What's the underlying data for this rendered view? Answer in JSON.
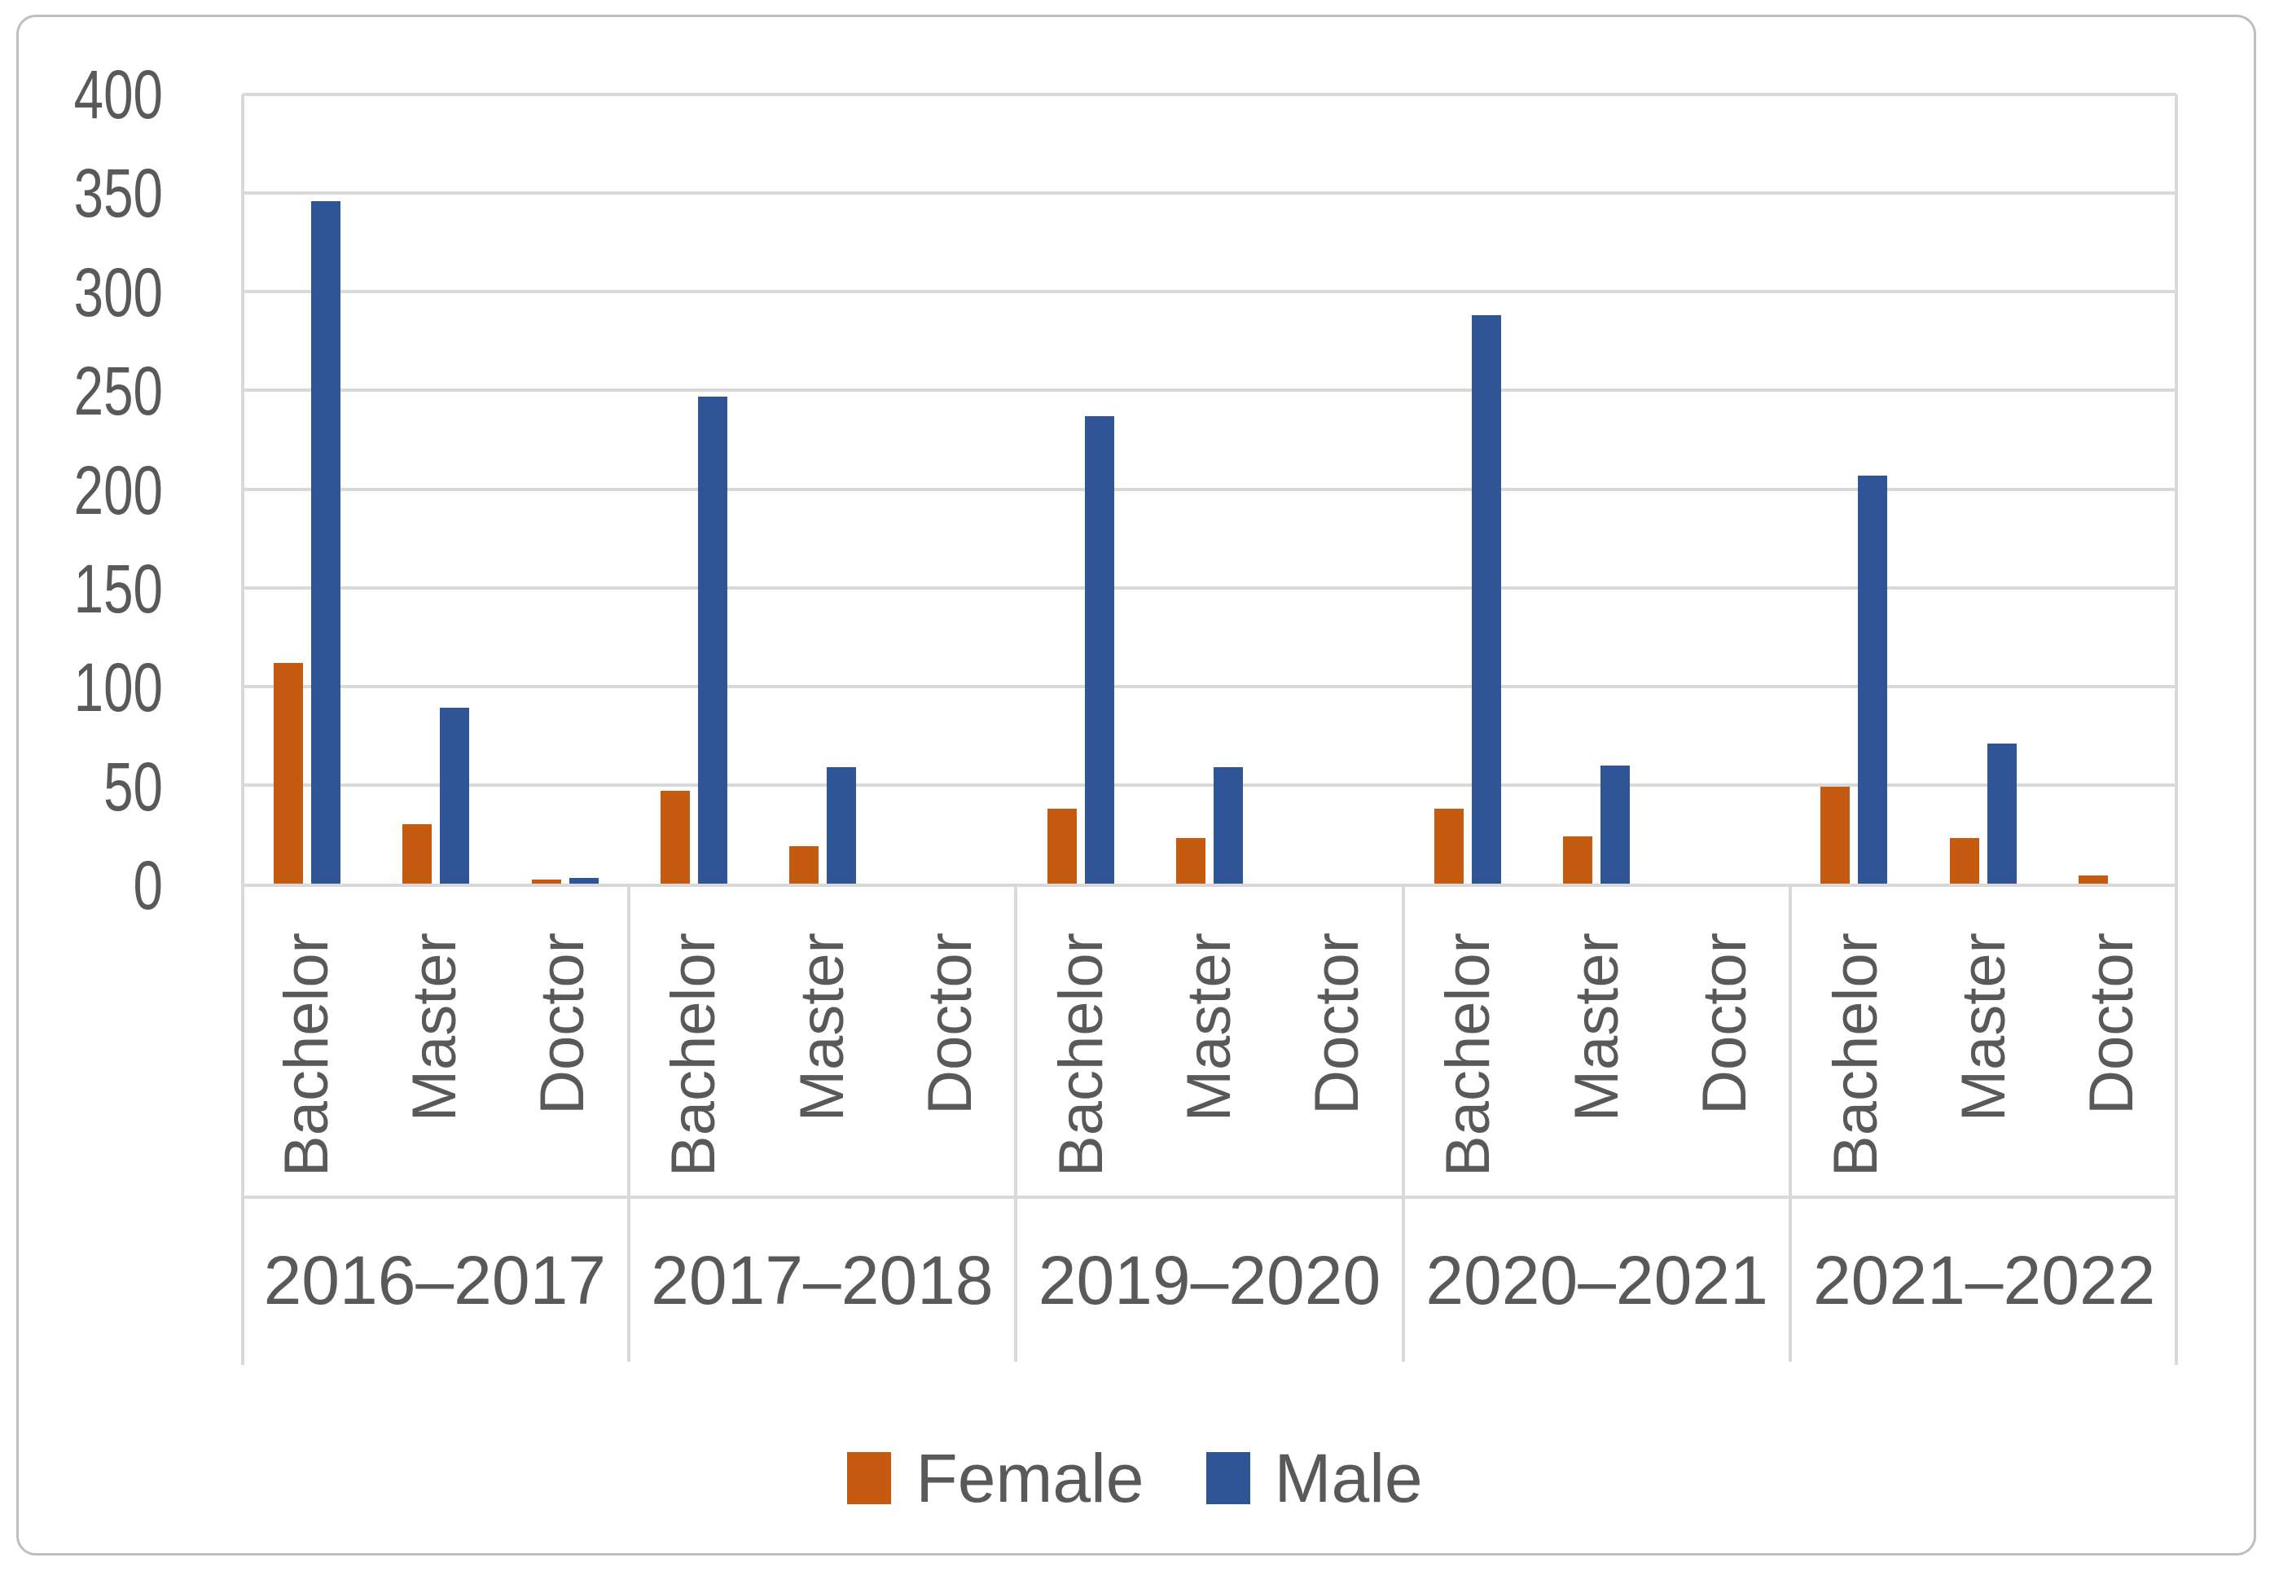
{
  "chart_data": {
    "type": "bar",
    "title": "",
    "xlabel": "",
    "ylabel": "",
    "categories_years": [
      "2016–2017",
      "2017–2018",
      "2019–2020",
      "2020–2021",
      "2021–2022"
    ],
    "categories_levels": [
      "Bachelor",
      "Master",
      "Doctor"
    ],
    "series": [
      {
        "name": "Female",
        "color": "#C55A11",
        "values": [
          [
            112,
            30,
            2
          ],
          [
            47,
            19,
            0
          ],
          [
            38,
            23,
            0
          ],
          [
            38,
            24,
            0
          ],
          [
            49,
            23,
            4
          ]
        ]
      },
      {
        "name": "Male",
        "color": "#2F5597",
        "values": [
          [
            346,
            89,
            3
          ],
          [
            247,
            59,
            0
          ],
          [
            237,
            59,
            0
          ],
          [
            288,
            60,
            0
          ],
          [
            207,
            71,
            0
          ]
        ]
      }
    ],
    "ylim": [
      0,
      400
    ],
    "ytick_step": 50,
    "yticks": [
      0,
      50,
      100,
      150,
      200,
      250,
      300,
      350,
      400
    ],
    "grid": true,
    "legend_position": "bottom"
  },
  "colors": {
    "female_accent": "#C55A11",
    "male_accent": "#2F5597",
    "gridline": "#D9D9D9",
    "axis_text": "#595959",
    "chart_border": "#BFBFBF",
    "background": "#FFFFFF"
  },
  "legend": {
    "female_label": "Female",
    "male_label": "Male"
  }
}
